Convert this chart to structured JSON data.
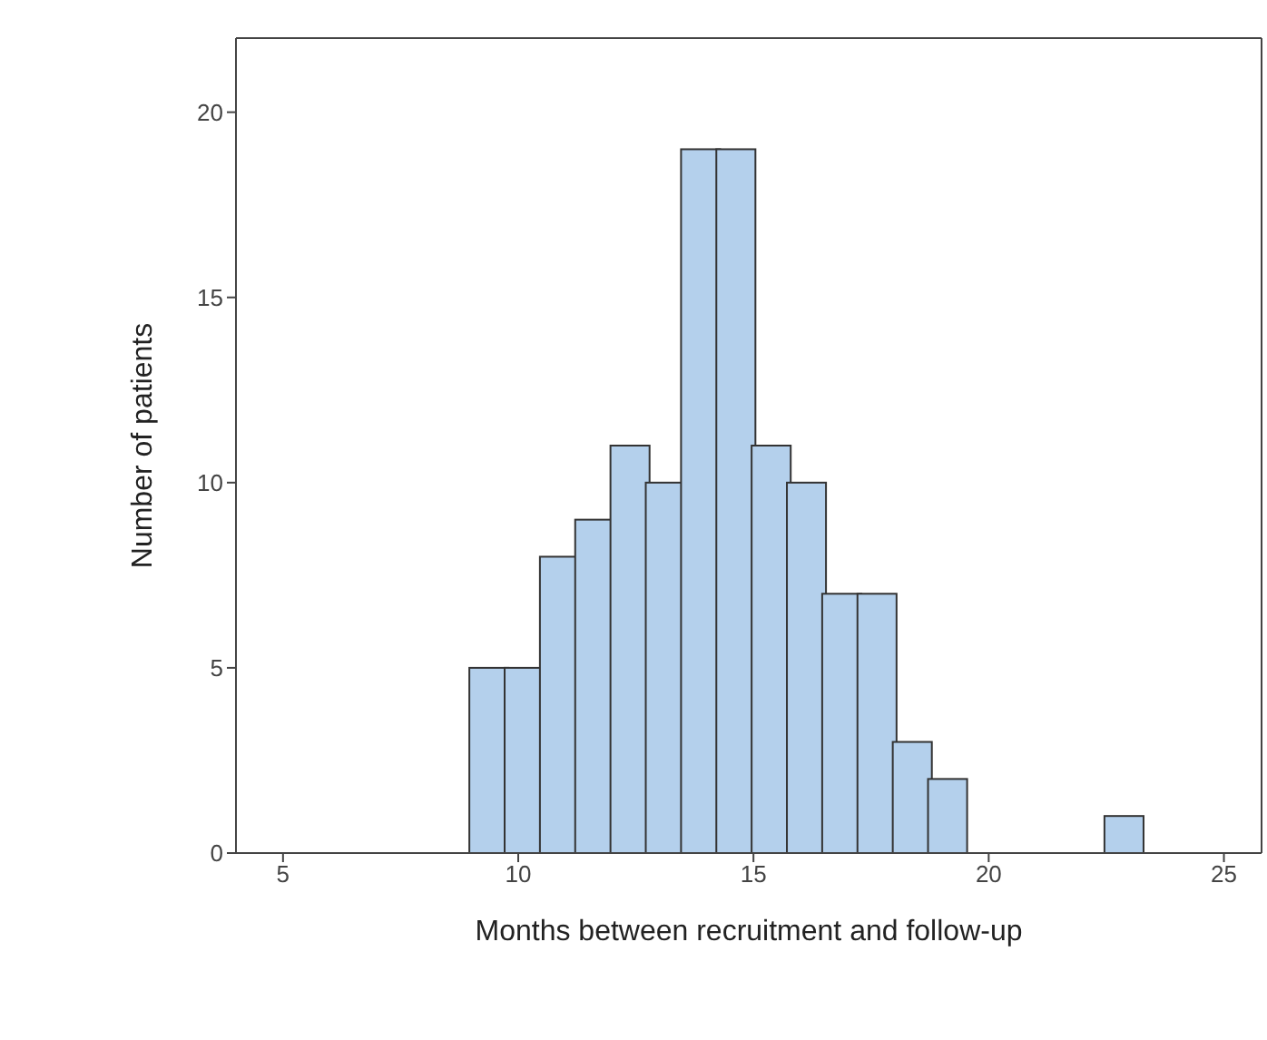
{
  "chart_data": {
    "type": "histogram",
    "xlabel": "Months between recruitment and follow-up",
    "ylabel": "Number of patients",
    "bins": [
      9,
      9.75,
      10.5,
      11.25,
      12,
      12.75,
      13.5,
      14.25,
      15,
      15.75,
      16.5,
      17.25,
      18,
      18.75,
      19.5,
      20.25,
      21,
      21.75,
      22.5,
      23.25
    ],
    "values": [
      5,
      5,
      8,
      9,
      11,
      10,
      19,
      19,
      11,
      10,
      7,
      7,
      3,
      2,
      0,
      0,
      0,
      0,
      1
    ],
    "color": "#b4d0ec",
    "xlim": [
      4,
      25.8
    ],
    "xticks": [
      5,
      10,
      15,
      20,
      25
    ],
    "ylim": [
      0,
      22
    ],
    "yticks": [
      0,
      5,
      10,
      15,
      20
    ],
    "grid": false
  }
}
